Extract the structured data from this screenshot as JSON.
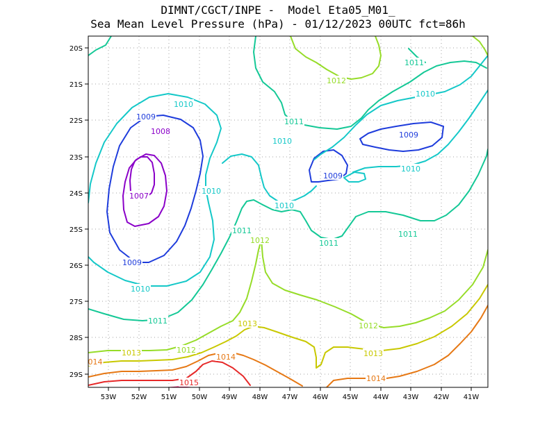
{
  "title": {
    "line1": "DIMNT/CGCT/INPE -  Model Eta05_M01_",
    "line2": "Sea Mean Level Pressure (hPa) - 01/12/2023 00UTC fct=86h"
  },
  "axes": {
    "lat_labels": [
      "20S",
      "21S",
      "22S",
      "23S",
      "24S",
      "25S",
      "26S",
      "27S",
      "28S",
      "29S"
    ],
    "lon_labels": [
      "53W",
      "52W",
      "51W",
      "50W",
      "49W",
      "48W",
      "47W",
      "46W",
      "45W",
      "44W",
      "43W",
      "42W",
      "41W"
    ]
  },
  "contour_labels": [
    {
      "text": "1007",
      "color": "#8a00c8"
    },
    {
      "text": "1008",
      "color": "#8a00c8"
    },
    {
      "text": "1009",
      "color": "#1e3cdc"
    },
    {
      "text": "1009",
      "color": "#1e3cdc"
    },
    {
      "text": "1009",
      "color": "#1e3cdc"
    },
    {
      "text": "1009",
      "color": "#1e3cdc"
    },
    {
      "text": "1010",
      "color": "#14c8c8"
    },
    {
      "text": "1010",
      "color": "#14c8c8"
    },
    {
      "text": "1010",
      "color": "#14c8c8"
    },
    {
      "text": "1010",
      "color": "#14c8c8"
    },
    {
      "text": "1010",
      "color": "#14c8c8"
    },
    {
      "text": "1010",
      "color": "#14c8c8"
    },
    {
      "text": "1010",
      "color": "#14c8c8"
    },
    {
      "text": "1011",
      "color": "#14c896"
    },
    {
      "text": "1011",
      "color": "#14c896"
    },
    {
      "text": "1011",
      "color": "#14c896"
    },
    {
      "text": "1011",
      "color": "#14c896"
    },
    {
      "text": "1011",
      "color": "#14c896"
    },
    {
      "text": "1011",
      "color": "#14c896"
    },
    {
      "text": "1012",
      "color": "#96dc28"
    },
    {
      "text": "1012",
      "color": "#96dc28"
    },
    {
      "text": "1012",
      "color": "#96dc28"
    },
    {
      "text": "1012",
      "color": "#96dc28"
    },
    {
      "text": "1013",
      "color": "#c8c800"
    },
    {
      "text": "1013",
      "color": "#c8c800"
    },
    {
      "text": "1013",
      "color": "#c8c800"
    },
    {
      "text": "1014",
      "color": "#e67814"
    },
    {
      "text": "1014",
      "color": "#e67814"
    },
    {
      "text": "014",
      "color": "#e67814"
    },
    {
      "text": "1015",
      "color": "#e62828"
    }
  ],
  "colors": {
    "c1007": "#8a00c8",
    "c1008": "#8a00c8",
    "c1009": "#1e3cdc",
    "c1010": "#14c8c8",
    "c1011": "#14c896",
    "c1012": "#96dc28",
    "c1013": "#c8c800",
    "c1014": "#e67814",
    "c1015": "#e62828",
    "c1016": "#e6146e",
    "coast": "#000000",
    "grid": "#a0a0a0"
  }
}
